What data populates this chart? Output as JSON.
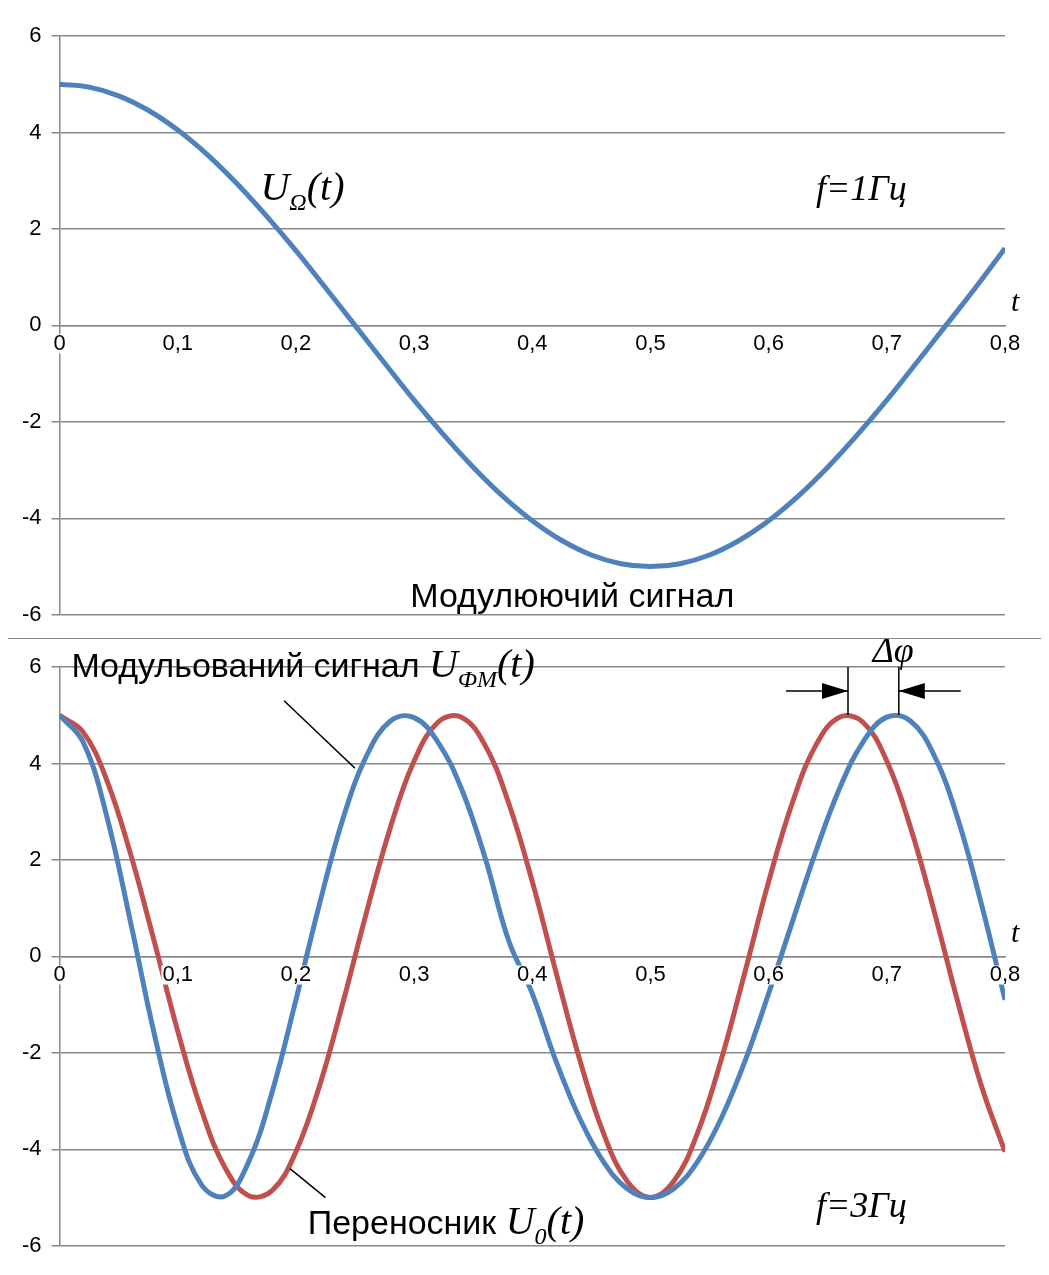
{
  "chart_data": [
    {
      "type": "line",
      "title": "Модулюючий сигнал",
      "xlabel": "t",
      "annotations": [
        "f=1Гц"
      ],
      "xlim": [
        0,
        0.8
      ],
      "ylim": [
        -6,
        6
      ],
      "xticks": [
        0,
        {
          "value": 0.1,
          "label": "0,1"
        },
        {
          "value": 0.2,
          "label": "0,2"
        },
        {
          "value": 0.3,
          "label": "0,3"
        },
        {
          "value": 0.4,
          "label": "0,4"
        },
        {
          "value": 0.5,
          "label": "0,5"
        },
        {
          "value": 0.6,
          "label": "0,6"
        },
        {
          "value": 0.7,
          "label": "0,7"
        },
        {
          "value": 0.8,
          "label": "0,8"
        }
      ],
      "yticks": [
        -6,
        -4,
        -2,
        0,
        2,
        4,
        6
      ],
      "grid": "y",
      "legend": false,
      "marker": "none",
      "line_style": "solid",
      "x": [
        0,
        0.025,
        0.05,
        0.075,
        0.1,
        0.125,
        0.15,
        0.175,
        0.2,
        0.225,
        0.25,
        0.275,
        0.3,
        0.325,
        0.35,
        0.375,
        0.4,
        0.425,
        0.45,
        0.475,
        0.5,
        0.525,
        0.55,
        0.575,
        0.6,
        0.625,
        0.65,
        0.675,
        0.7,
        0.725,
        0.75,
        0.775,
        0.8
      ],
      "series": [
        {
          "name": "U$_{Ω}$(t)",
          "color": "#4f81bd",
          "values": [
            5,
            4.94,
            4.76,
            4.46,
            4.05,
            3.54,
            2.94,
            2.27,
            1.55,
            0.78,
            0,
            -0.78,
            -1.55,
            -2.27,
            -2.94,
            -3.54,
            -4.05,
            -4.46,
            -4.76,
            -4.94,
            -5,
            -4.94,
            -4.76,
            -4.46,
            -4.05,
            -3.54,
            -2.94,
            -2.27,
            -1.55,
            -0.78,
            0,
            0.78,
            1.6
          ]
        }
      ]
    },
    {
      "type": "line",
      "xlabel": "t",
      "annotations": [
        "Δφ",
        "f=3Гц"
      ],
      "xlim": [
        0,
        0.8
      ],
      "ylim": [
        -6,
        6
      ],
      "xticks": [
        0,
        {
          "value": 0.1,
          "label": "0,1"
        },
        {
          "value": 0.2,
          "label": "0,2"
        },
        {
          "value": 0.3,
          "label": "0,3"
        },
        {
          "value": 0.4,
          "label": "0,4"
        },
        {
          "value": 0.5,
          "label": "0,5"
        },
        {
          "value": 0.6,
          "label": "0,6"
        },
        {
          "value": 0.7,
          "label": "0,7"
        },
        {
          "value": 0.8,
          "label": "0,8"
        }
      ],
      "yticks": [
        -6,
        -4,
        -2,
        0,
        2,
        4,
        6
      ],
      "grid": "y",
      "legend": false,
      "marker": "none",
      "line_style": "solid",
      "x": [
        0,
        0.02,
        0.04,
        0.06,
        0.08,
        0.1,
        0.12,
        0.14,
        0.16,
        0.18,
        0.2,
        0.22,
        0.24,
        0.26,
        0.28,
        0.3,
        0.32,
        0.34,
        0.36,
        0.38,
        0.4,
        0.42,
        0.44,
        0.46,
        0.48,
        0.5,
        0.52,
        0.54,
        0.56,
        0.58,
        0.6,
        0.62,
        0.64,
        0.66,
        0.68,
        0.7,
        0.72,
        0.74,
        0.76,
        0.78,
        0.8
      ],
      "series": [
        {
          "name": "Модульований сигнал U$_{ФМ}$(t)",
          "color": "#4f81bd",
          "values": [
            5,
            4.44,
            2.9,
            0.72,
            -1.59,
            -3.53,
            -4.73,
            -4.97,
            -4.26,
            -2.8,
            -0.9,
            1.09,
            2.87,
            4.17,
            4.88,
            4.95,
            4.45,
            3.48,
            2.05,
            0.33,
            -0.77,
            -2.17,
            -3.35,
            -4.25,
            -4.81,
            -5,
            -4.81,
            -4.25,
            -3.35,
            -2.17,
            -0.77,
            0.71,
            2.18,
            3.48,
            4.45,
            4.96,
            4.88,
            4.17,
            2.86,
            1.09,
            -0.9
          ]
        },
        {
          "name": "Переносник U$_{0}$(t)",
          "color": "#c0504d",
          "values": [
            5,
            4.65,
            3.65,
            2.13,
            0.32,
            -1.55,
            -3.18,
            -4.38,
            -4.96,
            -4.85,
            -4.05,
            -2.68,
            -0.94,
            0.94,
            2.68,
            4.05,
            4.85,
            4.96,
            4.38,
            3.18,
            1.55,
            -0.32,
            -2.13,
            -3.65,
            -4.65,
            -5,
            -4.65,
            -3.65,
            -2.13,
            -0.32,
            1.55,
            3.18,
            4.38,
            4.96,
            4.85,
            4.05,
            2.68,
            0.94,
            -0.94,
            -2.68,
            -4.05
          ]
        }
      ]
    }
  ]
}
